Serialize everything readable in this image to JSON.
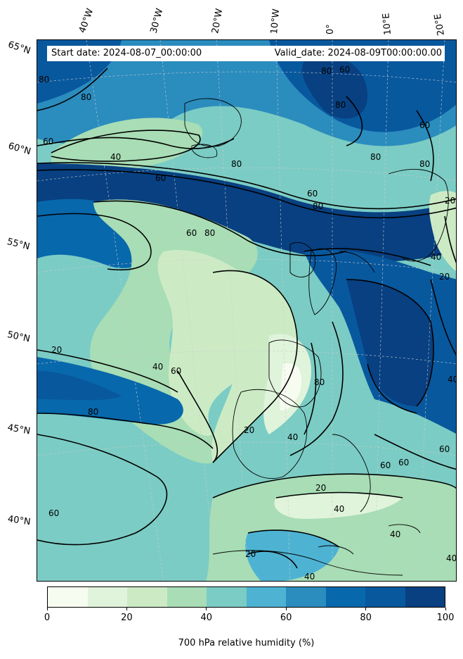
{
  "map": {
    "start_date_label": "Start date: 2024-08-07_00:00:00",
    "valid_date_label": "Valid_date: 2024-08-09T00:00:00.00",
    "lon_labels": [
      "40°W",
      "30°W",
      "20°W",
      "10°W",
      "0°",
      "10°E",
      "20°E"
    ],
    "lat_labels": [
      "65°N",
      "60°N",
      "55°N",
      "50°N",
      "45°N",
      "40°N"
    ],
    "contour_labels": [
      "80",
      "80",
      "60",
      "40",
      "60",
      "80",
      "60",
      "80",
      "80",
      "80",
      "60",
      "80",
      "60",
      "80",
      "60",
      "80",
      "20",
      "20",
      "40",
      "60",
      "80",
      "20",
      "40",
      "60",
      "60",
      "20",
      "40",
      "60",
      "40",
      "20",
      "40",
      "80",
      "40",
      "40",
      "60",
      "20",
      "40"
    ],
    "coastline_color": "#000000",
    "contour_color": "#000000"
  },
  "colorbar": {
    "title": "700 hPa relative humidity (%)",
    "tick_labels": [
      "0",
      "20",
      "40",
      "60",
      "80",
      "100"
    ],
    "colors": [
      "#f7fcf0",
      "#e0f3db",
      "#ccebc5",
      "#a8ddb5",
      "#7bccc4",
      "#4eb3d3",
      "#2b8cbe",
      "#0868ac",
      "#08589e",
      "#084081"
    ],
    "levels": [
      0,
      10,
      20,
      30,
      40,
      50,
      60,
      70,
      80,
      90,
      100
    ]
  }
}
